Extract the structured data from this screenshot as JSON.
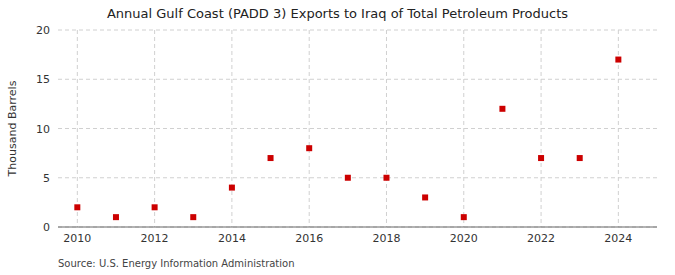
{
  "chart_data": {
    "type": "scatter",
    "title": "Annual Gulf Coast (PADD 3) Exports to Iraq of Total Petroleum Products",
    "y_label": "Thousand Barrels",
    "annotation": "Source: U.S. Energy Information Administration",
    "x": [
      2010,
      2011,
      2012,
      2013,
      2014,
      2015,
      2016,
      2017,
      2018,
      2019,
      2020,
      2021,
      2022,
      2023,
      2024
    ],
    "values": [
      2,
      1,
      2,
      1,
      4,
      7,
      8,
      5,
      5,
      3,
      1,
      12,
      7,
      7,
      17
    ],
    "color": "#cc0000",
    "marker": "square",
    "xlim": [
      2009.5,
      2025.0
    ],
    "ylim": [
      0,
      20
    ],
    "xticks": [
      2010,
      2012,
      2014,
      2016,
      2018,
      2020,
      2022,
      2024
    ],
    "yticks": [
      0,
      5,
      10,
      15,
      20
    ],
    "grid": true
  }
}
